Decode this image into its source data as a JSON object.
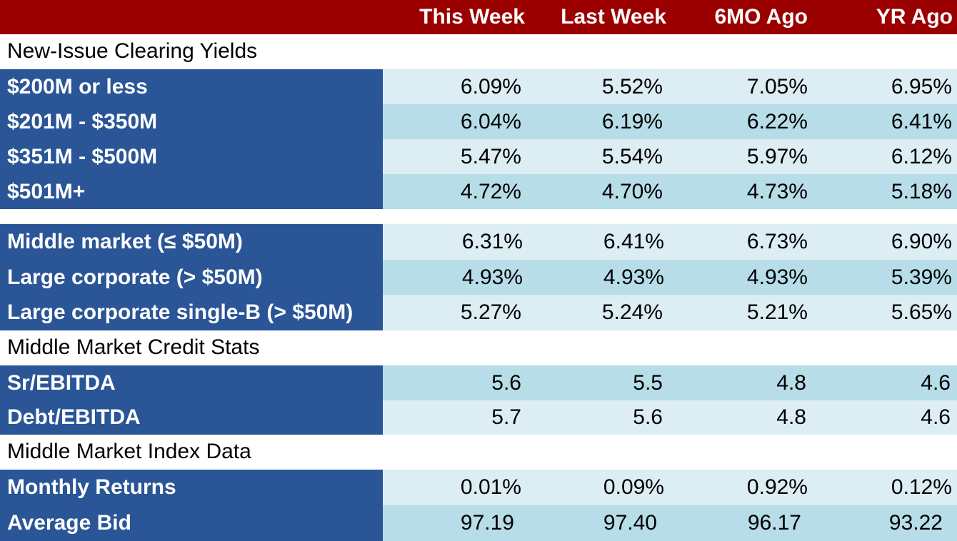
{
  "header": {
    "columns": [
      "This Week",
      "Last Week",
      "6MO Ago",
      "YR Ago"
    ]
  },
  "sections": {
    "s1": {
      "title": "New-Issue Clearing Yields",
      "rows": [
        {
          "label": "$200M or less",
          "values": [
            "6.09%",
            "5.52%",
            "7.05%",
            "6.95%"
          ]
        },
        {
          "label": "$201M - $350M",
          "values": [
            "6.04%",
            "6.19%",
            "6.22%",
            "6.41%"
          ]
        },
        {
          "label": "$351M - $500M",
          "values": [
            "5.47%",
            "5.54%",
            "5.97%",
            "6.12%"
          ]
        },
        {
          "label": "$501M+",
          "values": [
            "4.72%",
            "4.70%",
            "4.73%",
            "5.18%"
          ]
        }
      ]
    },
    "s2": {
      "rows": [
        {
          "label": "Middle market (≤ $50M)",
          "values": [
            "6.31%",
            "6.41%",
            "6.73%",
            "6.90%"
          ]
        },
        {
          "label": "Large corporate (> $50M)",
          "values": [
            "4.93%",
            "4.93%",
            "4.93%",
            "5.39%"
          ]
        },
        {
          "label": "Large corporate single-B (> $50M)",
          "values": [
            "5.27%",
            "5.24%",
            "5.21%",
            "5.65%"
          ]
        }
      ]
    },
    "s3": {
      "title": "Middle Market Credit Stats",
      "rows": [
        {
          "label": "Sr/EBITDA",
          "values": [
            "5.6",
            "5.5",
            "4.8",
            "4.6"
          ]
        },
        {
          "label": "Debt/EBITDA",
          "values": [
            "5.7",
            "5.6",
            "4.8",
            "4.6"
          ]
        }
      ]
    },
    "s4": {
      "title": "Middle Market Index Data",
      "rows": [
        {
          "label": "Monthly Returns",
          "values": [
            "0.01%",
            "0.09%",
            "0.92%",
            "0.12%"
          ]
        },
        {
          "label": "Average Bid",
          "values": [
            "97.19",
            "97.40",
            "96.17",
            "93.22"
          ]
        }
      ]
    }
  },
  "colors": {
    "header_bg": "#9b0000",
    "label_bg": "#2a5597",
    "row_light": "#dcedf3",
    "row_dark": "#b7dde8"
  }
}
